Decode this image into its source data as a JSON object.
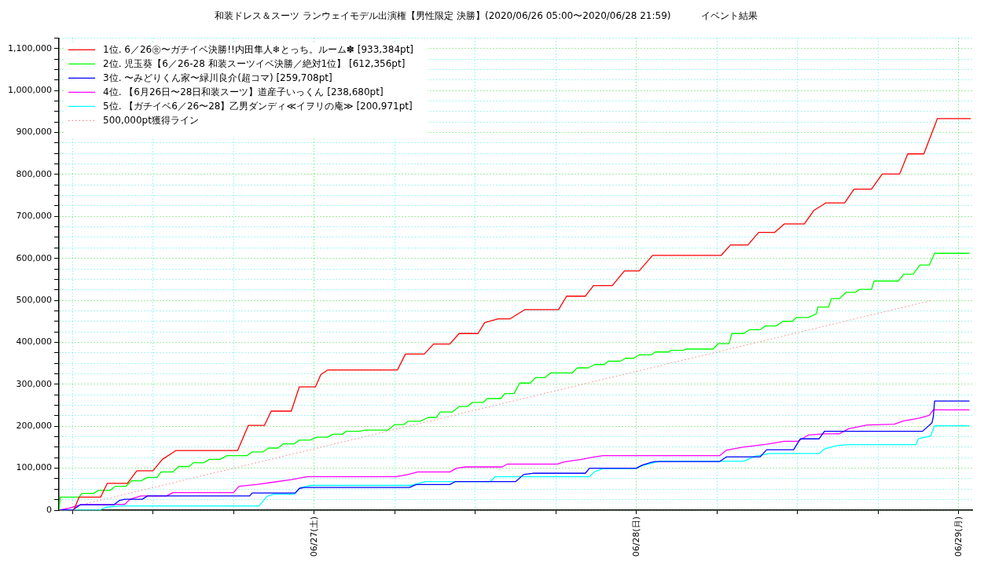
{
  "chart_data": {
    "type": "line",
    "title": "和装ドレス＆スーツ ランウェイモデル出演権【男性限定 決勝】(2020/06/26 05:00〜2020/06/28 21:59)          イベント結果",
    "xlim": [
      "2020-06-26T05:00",
      "2020-06-29T01:00"
    ],
    "xticks": [
      {
        "value": "2020-06-26T06:00",
        "label": null
      },
      {
        "value": "2020-06-26T12:00",
        "label": null
      },
      {
        "value": "2020-06-26T18:00",
        "label": null
      },
      {
        "value": "2020-06-27T00:00",
        "label": "06/27(土)"
      },
      {
        "value": "2020-06-27T06:00",
        "label": null
      },
      {
        "value": "2020-06-27T12:00",
        "label": null
      },
      {
        "value": "2020-06-27T18:00",
        "label": null
      },
      {
        "value": "2020-06-28T00:00",
        "label": "06/28(日)"
      },
      {
        "value": "2020-06-28T06:00",
        "label": null
      },
      {
        "value": "2020-06-28T12:00",
        "label": null
      },
      {
        "value": "2020-06-28T18:00",
        "label": null
      },
      {
        "value": "2020-06-29T00:00",
        "label": "06/29(月)"
      }
    ],
    "ylim": [
      0,
      1125000
    ],
    "yticks": [
      0,
      {
        "value": 25000,
        "label": null
      },
      {
        "value": 50000,
        "label": null
      },
      {
        "value": 75000,
        "label": null
      },
      {
        "value": 100000,
        "label": "100,000"
      },
      {
        "value": 125000,
        "label": null
      },
      {
        "value": 150000,
        "label": null
      },
      {
        "value": 175000,
        "label": null
      },
      {
        "value": 200000,
        "label": "200,000"
      },
      {
        "value": 225000,
        "label": null
      },
      {
        "value": 250000,
        "label": null
      },
      {
        "value": 275000,
        "label": null
      },
      {
        "value": 300000,
        "label": "300,000"
      },
      {
        "value": 325000,
        "label": null
      },
      {
        "value": 350000,
        "label": null
      },
      {
        "value": 375000,
        "label": null
      },
      {
        "value": 400000,
        "label": "400,000"
      },
      {
        "value": 425000,
        "label": null
      },
      {
        "value": 450000,
        "label": null
      },
      {
        "value": 475000,
        "label": null
      },
      {
        "value": 500000,
        "label": "500,000"
      },
      {
        "value": 525000,
        "label": null
      },
      {
        "value": 550000,
        "label": null
      },
      {
        "value": 575000,
        "label": null
      },
      {
        "value": 600000,
        "label": "600,000"
      },
      {
        "value": 625000,
        "label": null
      },
      {
        "value": 650000,
        "label": null
      },
      {
        "value": 675000,
        "label": null
      },
      {
        "value": 700000,
        "label": "700,000"
      },
      {
        "value": 725000,
        "label": null
      },
      {
        "value": 750000,
        "label": null
      },
      {
        "value": 775000,
        "label": null
      },
      {
        "value": 800000,
        "label": "800,000"
      },
      {
        "value": 825000,
        "label": null
      },
      {
        "value": 850000,
        "label": null
      },
      {
        "value": 875000,
        "label": null
      },
      {
        "value": 900000,
        "label": "900,000"
      },
      {
        "value": 925000,
        "label": null
      },
      {
        "value": 950000,
        "label": null
      },
      {
        "value": 975000,
        "label": null
      },
      {
        "value": 1000000,
        "label": "1,000,000"
      },
      {
        "value": 1025000,
        "label": null
      },
      {
        "value": 1050000,
        "label": null
      },
      {
        "value": 1075000,
        "label": null
      },
      {
        "value": 1100000,
        "label": "1,100,000"
      },
      {
        "value": 1125000,
        "label": null
      }
    ],
    "grid": true,
    "legend": "top left",
    "marker": "none",
    "series": [
      {
        "name": "1位. 6／26㊎〜ガチイベ決勝!!内田隼人❄とっち。ルーム✽ [933,384pt]",
        "color": "#ff0000",
        "line_style": "solid",
        "x": [
          "2020-06-26T06:06",
          "2020-06-26T06:30",
          "2020-06-26T08:06",
          "2020-06-26T08:36",
          "2020-06-26T10:06",
          "2020-06-26T10:48",
          "2020-06-26T12:00",
          "2020-06-26T12:42",
          "2020-06-26T13:42",
          "2020-06-26T18:18",
          "2020-06-26T19:06",
          "2020-06-26T20:18",
          "2020-06-26T20:48",
          "2020-06-26T22:18",
          "2020-06-26T22:54",
          "2020-06-27T00:06",
          "2020-06-27T00:30",
          "2020-06-27T01:00",
          "2020-06-27T06:12",
          "2020-06-27T06:48",
          "2020-06-27T08:12",
          "2020-06-27T08:54",
          "2020-06-27T10:06",
          "2020-06-27T10:48",
          "2020-06-27T12:12",
          "2020-06-27T12:42",
          "2020-06-27T13:42",
          "2020-06-27T14:36",
          "2020-06-27T15:42",
          "2020-06-27T18:12",
          "2020-06-27T18:48",
          "2020-06-27T20:12",
          "2020-06-27T20:48",
          "2020-06-27T22:12",
          "2020-06-27T23:06",
          "2020-06-28T00:12",
          "2020-06-28T01:12",
          "2020-06-28T06:18",
          "2020-06-28T07:00",
          "2020-06-28T08:18",
          "2020-06-28T09:06",
          "2020-06-28T10:18",
          "2020-06-28T11:00",
          "2020-06-28T12:30",
          "2020-06-28T13:12",
          "2020-06-28T14:06",
          "2020-06-28T15:30",
          "2020-06-28T16:12",
          "2020-06-28T17:30",
          "2020-06-28T18:18",
          "2020-06-28T19:36",
          "2020-06-28T20:12",
          "2020-06-28T21:24",
          "2020-06-28T22:00",
          "2020-06-28T22:18",
          "2020-06-28T22:24",
          "2020-06-29T00:54"
        ],
        "values": [
          0,
          31000,
          31000,
          64000,
          64000,
          94000,
          94000,
          121000,
          142000,
          142000,
          202000,
          202000,
          236000,
          236000,
          294000,
          294000,
          323000,
          334000,
          334000,
          372000,
          372000,
          396000,
          396000,
          421000,
          421000,
          447000,
          456000,
          456000,
          478000,
          478000,
          510000,
          510000,
          535000,
          535000,
          570000,
          570000,
          607000,
          607000,
          632000,
          632000,
          662000,
          662000,
          682000,
          682000,
          714000,
          732000,
          732000,
          765000,
          765000,
          801000,
          801000,
          849000,
          849000,
          899000,
          924000,
          933000,
          933000
        ]
      },
      {
        "name": "2位. 児玉葵【6／26-28 和装スーツイベ決勝／絶対1位】 [612,356pt]",
        "color": "#00ff00",
        "line_style": "solid",
        "x": [
          "2020-06-26T05:00",
          "2020-06-26T05:06",
          "2020-06-26T06:30",
          "2020-06-26T06:42",
          "2020-06-26T07:36",
          "2020-06-26T07:54",
          "2020-06-26T08:48",
          "2020-06-26T09:12",
          "2020-06-26T10:00",
          "2020-06-26T10:24",
          "2020-06-26T11:06",
          "2020-06-26T11:36",
          "2020-06-26T12:18",
          "2020-06-26T12:36",
          "2020-06-26T13:30",
          "2020-06-26T13:54",
          "2020-06-26T14:42",
          "2020-06-26T15:00",
          "2020-06-26T15:48",
          "2020-06-26T16:12",
          "2020-06-26T17:00",
          "2020-06-26T17:30",
          "2020-06-26T19:00",
          "2020-06-26T19:24",
          "2020-06-26T20:12",
          "2020-06-26T20:36",
          "2020-06-26T21:18",
          "2020-06-26T21:42",
          "2020-06-26T22:30",
          "2020-06-26T22:54",
          "2020-06-26T23:42",
          "2020-06-27T00:12",
          "2020-06-27T01:00",
          "2020-06-27T01:24",
          "2020-06-27T02:06",
          "2020-06-27T02:24",
          "2020-06-27T03:24",
          "2020-06-27T03:48",
          "2020-06-27T05:30",
          "2020-06-27T06:00",
          "2020-06-27T06:42",
          "2020-06-27T07:00",
          "2020-06-27T07:54",
          "2020-06-27T08:30",
          "2020-06-27T09:06",
          "2020-06-27T09:24",
          "2020-06-27T10:18",
          "2020-06-27T10:48",
          "2020-06-27T11:24",
          "2020-06-27T11:48",
          "2020-06-27T12:36",
          "2020-06-27T12:54",
          "2020-06-27T13:54",
          "2020-06-27T14:12",
          "2020-06-27T14:54",
          "2020-06-27T15:18",
          "2020-06-27T16:06",
          "2020-06-27T16:30",
          "2020-06-27T17:12",
          "2020-06-27T17:36",
          "2020-06-27T19:12",
          "2020-06-27T19:36",
          "2020-06-27T20:24",
          "2020-06-27T20:54",
          "2020-06-27T21:36",
          "2020-06-27T21:54",
          "2020-06-27T22:48",
          "2020-06-27T23:12",
          "2020-06-27T23:48",
          "2020-06-28T00:12",
          "2020-06-28T01:06",
          "2020-06-28T01:24",
          "2020-06-28T02:24",
          "2020-06-28T02:36",
          "2020-06-28T03:30",
          "2020-06-28T03:42",
          "2020-06-28T05:42",
          "2020-06-28T06:06",
          "2020-06-28T06:54",
          "2020-06-28T07:06",
          "2020-06-28T08:00",
          "2020-06-28T08:24",
          "2020-06-28T09:12",
          "2020-06-28T09:36",
          "2020-06-28T10:24",
          "2020-06-28T10:54",
          "2020-06-28T11:36",
          "2020-06-28T11:54",
          "2020-06-28T12:48",
          "2020-06-28T13:24",
          "2020-06-28T13:30",
          "2020-06-28T14:18",
          "2020-06-28T14:24",
          "2020-06-28T14:30",
          "2020-06-28T15:06",
          "2020-06-28T15:36",
          "2020-06-28T16:18",
          "2020-06-28T16:36",
          "2020-06-28T17:30",
          "2020-06-28T17:42",
          "2020-06-28T19:30",
          "2020-06-28T19:54",
          "2020-06-28T20:36",
          "2020-06-28T21:06",
          "2020-06-28T21:48",
          "2020-06-28T22:12",
          "2020-06-29T00:48"
        ],
        "values": [
          0,
          31000,
          31000,
          40000,
          40000,
          47000,
          47000,
          57000,
          57000,
          70000,
          70000,
          78000,
          78000,
          91000,
          91000,
          104000,
          104000,
          113000,
          113000,
          121000,
          121000,
          130000,
          130000,
          139000,
          139000,
          148000,
          148000,
          158000,
          158000,
          167000,
          167000,
          174000,
          174000,
          181000,
          181000,
          188000,
          188000,
          191000,
          191000,
          204000,
          204000,
          212000,
          212000,
          221000,
          221000,
          234000,
          234000,
          247000,
          247000,
          257000,
          257000,
          266000,
          266000,
          278000,
          278000,
          303000,
          303000,
          316000,
          316000,
          327000,
          327000,
          339000,
          339000,
          347000,
          347000,
          355000,
          355000,
          362000,
          362000,
          370000,
          370000,
          377000,
          377000,
          381000,
          381000,
          384000,
          384000,
          397000,
          397000,
          421000,
          421000,
          430000,
          430000,
          439000,
          439000,
          450000,
          450000,
          459000,
          459000,
          468000,
          484000,
          484000,
          492000,
          504000,
          504000,
          519000,
          519000,
          526000,
          526000,
          546000,
          546000,
          562000,
          562000,
          584000,
          584000,
          612000,
          612000
        ]
      },
      {
        "name": "3位. 〜みどりくん家〜緑川良介(超コマ) [259,708pt]",
        "color": "#0000ff",
        "line_style": "solid",
        "x": [
          "2020-06-26T05:00",
          "2020-06-26T06:00",
          "2020-06-26T06:36",
          "2020-06-26T09:06",
          "2020-06-26T09:30",
          "2020-06-26T09:54",
          "2020-06-26T11:12",
          "2020-06-26T11:36",
          "2020-06-26T19:12",
          "2020-06-26T19:24",
          "2020-06-26T22:36",
          "2020-06-26T22:54",
          "2020-06-26T23:18",
          "2020-06-27T07:06",
          "2020-06-27T07:36",
          "2020-06-27T10:06",
          "2020-06-27T10:30",
          "2020-06-27T15:00",
          "2020-06-27T15:36",
          "2020-06-27T16:18",
          "2020-06-27T20:12",
          "2020-06-27T20:30",
          "2020-06-28T00:00",
          "2020-06-28T00:24",
          "2020-06-28T01:06",
          "2020-06-28T01:24",
          "2020-06-28T06:12",
          "2020-06-28T06:42",
          "2020-06-28T09:12",
          "2020-06-28T09:42",
          "2020-06-28T11:42",
          "2020-06-28T12:12",
          "2020-06-28T13:36",
          "2020-06-28T14:00",
          "2020-06-28T21:18",
          "2020-06-28T22:00",
          "2020-06-28T22:06",
          "2020-06-28T22:12",
          "2020-06-29T00:48"
        ],
        "values": [
          0,
          0,
          13000,
          13000,
          23000,
          26000,
          26000,
          34000,
          34000,
          41000,
          41000,
          52000,
          54000,
          54000,
          61000,
          61000,
          68000,
          68000,
          85000,
          88000,
          88000,
          100000,
          100000,
          107000,
          114000,
          116000,
          116000,
          127000,
          127000,
          144000,
          144000,
          170000,
          170000,
          188000,
          188000,
          208000,
          222000,
          260000,
          260000
        ]
      },
      {
        "name": "4位. 【6月26日〜28日和装スーツ】道産子いっくん [238,680pt]",
        "color": "#ff00ff",
        "line_style": "solid",
        "x": [
          "2020-06-26T05:00",
          "2020-06-26T05:48",
          "2020-06-26T06:42",
          "2020-06-26T09:54",
          "2020-06-26T10:18",
          "2020-06-26T11:06",
          "2020-06-26T13:00",
          "2020-06-26T13:30",
          "2020-06-26T18:00",
          "2020-06-26T18:24",
          "2020-06-26T19:42",
          "2020-06-26T20:48",
          "2020-06-26T22:18",
          "2020-06-26T23:30",
          "2020-06-27T06:06",
          "2020-06-27T07:00",
          "2020-06-27T07:42",
          "2020-06-27T10:06",
          "2020-06-27T10:36",
          "2020-06-27T11:18",
          "2020-06-27T14:00",
          "2020-06-27T14:24",
          "2020-06-27T18:06",
          "2020-06-27T18:36",
          "2020-06-27T19:54",
          "2020-06-27T20:54",
          "2020-06-27T21:30",
          "2020-06-28T06:12",
          "2020-06-28T06:42",
          "2020-06-28T07:54",
          "2020-06-28T09:42",
          "2020-06-28T11:00",
          "2020-06-28T12:00",
          "2020-06-28T12:48",
          "2020-06-28T14:00",
          "2020-06-28T15:06",
          "2020-06-28T15:48",
          "2020-06-28T17:12",
          "2020-06-28T19:12",
          "2020-06-28T19:54",
          "2020-06-28T21:00",
          "2020-06-28T21:48",
          "2020-06-28T22:06",
          "2020-06-29T00:48"
        ],
        "values": [
          0,
          5000,
          14000,
          14000,
          26000,
          34000,
          34000,
          42000,
          42000,
          57000,
          61000,
          66000,
          73000,
          80000,
          80000,
          85000,
          91000,
          91000,
          100000,
          103000,
          103000,
          110000,
          110000,
          115000,
          121000,
          127000,
          130000,
          130000,
          143000,
          150000,
          157000,
          164000,
          164000,
          179000,
          182000,
          182000,
          194000,
          203000,
          205000,
          213000,
          219000,
          226000,
          239000,
          239000
        ]
      },
      {
        "name": "5位. 【ガチイベ6／26〜28】乙男ダンディ≪イヲリの庵≫ [200,971pt]",
        "color": "#00ffff",
        "line_style": "solid",
        "x": [
          "2020-06-26T05:00",
          "2020-06-26T08:00",
          "2020-06-26T08:30",
          "2020-06-26T09:30",
          "2020-06-26T19:54",
          "2020-06-26T20:30",
          "2020-06-26T21:00",
          "2020-06-26T22:30",
          "2020-06-26T23:00",
          "2020-06-26T23:48",
          "2020-06-27T07:12",
          "2020-06-27T08:18",
          "2020-06-27T13:06",
          "2020-06-27T13:30",
          "2020-06-27T20:30",
          "2020-06-27T20:54",
          "2020-06-27T21:30",
          "2020-06-27T23:54",
          "2020-06-28T00:30",
          "2020-06-28T01:48",
          "2020-06-28T08:00",
          "2020-06-28T08:48",
          "2020-06-28T09:54",
          "2020-06-28T13:36",
          "2020-06-28T14:00",
          "2020-06-28T14:54",
          "2020-06-28T15:48",
          "2020-06-28T20:48",
          "2020-06-28T21:00",
          "2020-06-28T21:54",
          "2020-06-28T22:12",
          "2020-06-29T00:48"
        ],
        "values": [
          0,
          0,
          7000,
          10000,
          10000,
          33000,
          38000,
          38000,
          54000,
          59000,
          59000,
          68000,
          68000,
          80000,
          80000,
          92000,
          99000,
          99000,
          107000,
          117000,
          117000,
          128000,
          135000,
          135000,
          146000,
          154000,
          156000,
          156000,
          170000,
          177000,
          201000,
          201000
        ]
      },
      {
        "name": "500,000pt獲得ライン",
        "color": "#ff8080",
        "line_style": "dotted",
        "x": [
          "2020-06-26T05:00",
          "2020-06-28T22:00"
        ],
        "values": [
          0,
          500000
        ]
      }
    ]
  }
}
